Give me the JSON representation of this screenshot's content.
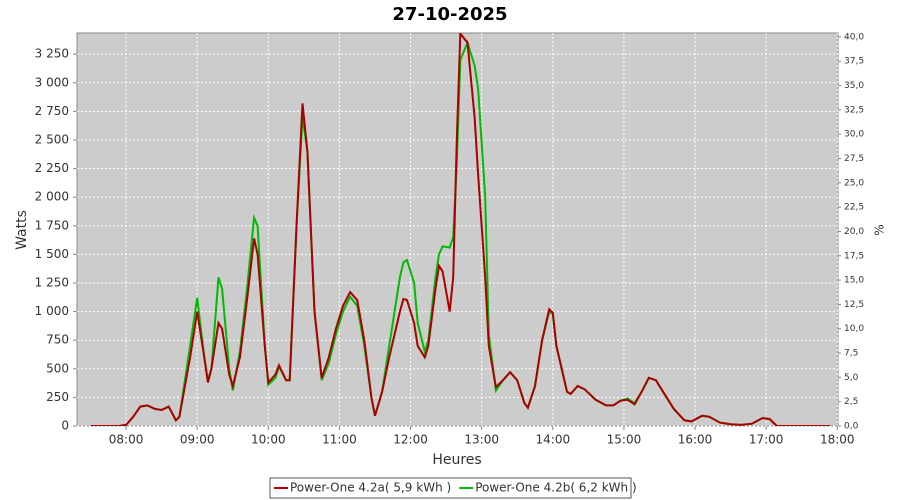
{
  "chart_data": {
    "type": "line",
    "title": "27-10-2025",
    "xlabel": "Heures",
    "ylabel": "Watts",
    "y2label": "%",
    "x": [
      7.5,
      7.9,
      8.0,
      8.1,
      8.2,
      8.3,
      8.4,
      8.5,
      8.6,
      8.7,
      8.75,
      8.9,
      9.0,
      9.1,
      9.15,
      9.2,
      9.3,
      9.35,
      9.45,
      9.5,
      9.6,
      9.7,
      9.8,
      9.85,
      9.95,
      10.0,
      10.1,
      10.15,
      10.25,
      10.3,
      10.4,
      10.48,
      10.55,
      10.65,
      10.75,
      10.85,
      10.95,
      11.05,
      11.15,
      11.25,
      11.35,
      11.45,
      11.5,
      11.6,
      11.7,
      11.85,
      11.9,
      11.95,
      12.05,
      12.1,
      12.2,
      12.25,
      12.35,
      12.4,
      12.45,
      12.55,
      12.6,
      12.65,
      12.7,
      12.8,
      12.9,
      12.95,
      13.05,
      13.1,
      13.2,
      13.3,
      13.4,
      13.5,
      13.6,
      13.65,
      13.75,
      13.85,
      13.95,
      14.0,
      14.05,
      14.2,
      14.25,
      14.35,
      14.45,
      14.6,
      14.75,
      14.85,
      14.95,
      15.05,
      15.15,
      15.25,
      15.35,
      15.45,
      15.55,
      15.7,
      15.85,
      15.95,
      16.1,
      16.2,
      16.35,
      16.5,
      16.65,
      16.8,
      16.95,
      17.05,
      17.15,
      17.9
    ],
    "series": [
      {
        "name": "Power-One 4.2a( 5,9 kWh )",
        "color": "#aa0000",
        "values": [
          0,
          0,
          10,
          80,
          170,
          180,
          150,
          140,
          170,
          50,
          80,
          600,
          1000,
          600,
          380,
          500,
          900,
          850,
          450,
          350,
          600,
          1100,
          1640,
          1500,
          700,
          380,
          450,
          530,
          400,
          400,
          1800,
          2820,
          2400,
          1000,
          420,
          600,
          850,
          1050,
          1170,
          1100,
          750,
          250,
          90,
          300,
          600,
          1000,
          1110,
          1100,
          900,
          700,
          600,
          700,
          1200,
          1400,
          1350,
          1000,
          1300,
          2500,
          3430,
          3350,
          2700,
          2200,
          1300,
          700,
          340,
          400,
          470,
          400,
          200,
          160,
          350,
          750,
          1020,
          990,
          700,
          300,
          280,
          350,
          320,
          230,
          180,
          180,
          220,
          230,
          190,
          300,
          420,
          400,
          300,
          150,
          50,
          40,
          90,
          80,
          30,
          15,
          10,
          20,
          70,
          60,
          0,
          0
        ]
      },
      {
        "name": "Power-One 4.2b( 6,2 kWh )",
        "color": "#00bb00",
        "values": [
          0,
          0,
          10,
          80,
          170,
          180,
          150,
          140,
          170,
          50,
          80,
          700,
          1120,
          600,
          400,
          500,
          1300,
          1200,
          500,
          310,
          650,
          1200,
          1820,
          1750,
          700,
          360,
          420,
          520,
          400,
          400,
          1800,
          2700,
          2400,
          1000,
          400,
          550,
          800,
          1000,
          1130,
          1050,
          700,
          250,
          90,
          300,
          700,
          1300,
          1430,
          1450,
          1250,
          900,
          650,
          750,
          1300,
          1500,
          1570,
          1560,
          1650,
          2300,
          3200,
          3350,
          3150,
          2950,
          2000,
          800,
          310,
          400,
          470,
          400,
          200,
          160,
          350,
          750,
          1000,
          980,
          700,
          300,
          280,
          350,
          320,
          230,
          180,
          180,
          220,
          240,
          200,
          300,
          420,
          400,
          300,
          150,
          50,
          40,
          90,
          80,
          30,
          15,
          10,
          20,
          70,
          60,
          0,
          0
        ]
      }
    ],
    "xlim": [
      7.31,
      18.01
    ],
    "xticks": [
      {
        "value": 8,
        "label": "08:00"
      },
      {
        "value": 9,
        "label": "09:00"
      },
      {
        "value": 10,
        "label": "10:00"
      },
      {
        "value": 11,
        "label": "11:00"
      },
      {
        "value": 12,
        "label": "12:00"
      },
      {
        "value": 13,
        "label": "13:00"
      },
      {
        "value": 14,
        "label": "14:00"
      },
      {
        "value": 15,
        "label": "15:00"
      },
      {
        "value": 16,
        "label": "16:00"
      },
      {
        "value": 17,
        "label": "17:00"
      },
      {
        "value": 18,
        "label": "18:00"
      }
    ],
    "ylim": [
      0,
      3435
    ],
    "yticks": [
      0,
      250,
      500,
      750,
      {
        "value": 1000,
        "label": "1 000"
      },
      {
        "value": 1250,
        "label": "1 250"
      },
      {
        "value": 1500,
        "label": "1 500"
      },
      {
        "value": 1750,
        "label": "1 750"
      },
      {
        "value": 2000,
        "label": "2 000"
      },
      {
        "value": 2250,
        "label": "2 250"
      },
      {
        "value": 2500,
        "label": "2 500"
      },
      {
        "value": 2750,
        "label": "2 750"
      },
      {
        "value": 3000,
        "label": "3 000"
      },
      {
        "value": 3250,
        "label": "3 250"
      }
    ],
    "y2lim": [
      0,
      40.4
    ],
    "y2ticks": [
      {
        "value": 0,
        "label": "0,0"
      },
      {
        "value": 2.5,
        "label": "2,5"
      },
      {
        "value": 5,
        "label": "5,0"
      },
      {
        "value": 7.5,
        "label": "7,5"
      },
      {
        "value": 10,
        "label": "10,0"
      },
      {
        "value": 12.5,
        "label": "12,5"
      },
      {
        "value": 15,
        "label": "15,0"
      },
      {
        "value": 17.5,
        "label": "17,5"
      },
      {
        "value": 20,
        "label": "20,0"
      },
      {
        "value": 22.5,
        "label": "22,5"
      },
      {
        "value": 25,
        "label": "25,0"
      },
      {
        "value": 27.5,
        "label": "27,5"
      },
      {
        "value": 30,
        "label": "30,0"
      },
      {
        "value": 32.5,
        "label": "32,5"
      },
      {
        "value": 35,
        "label": "35,0"
      },
      {
        "value": 37.5,
        "label": "37,5"
      },
      {
        "value": 40,
        "label": "40,0"
      }
    ],
    "grid": true,
    "legend": "bottom"
  }
}
